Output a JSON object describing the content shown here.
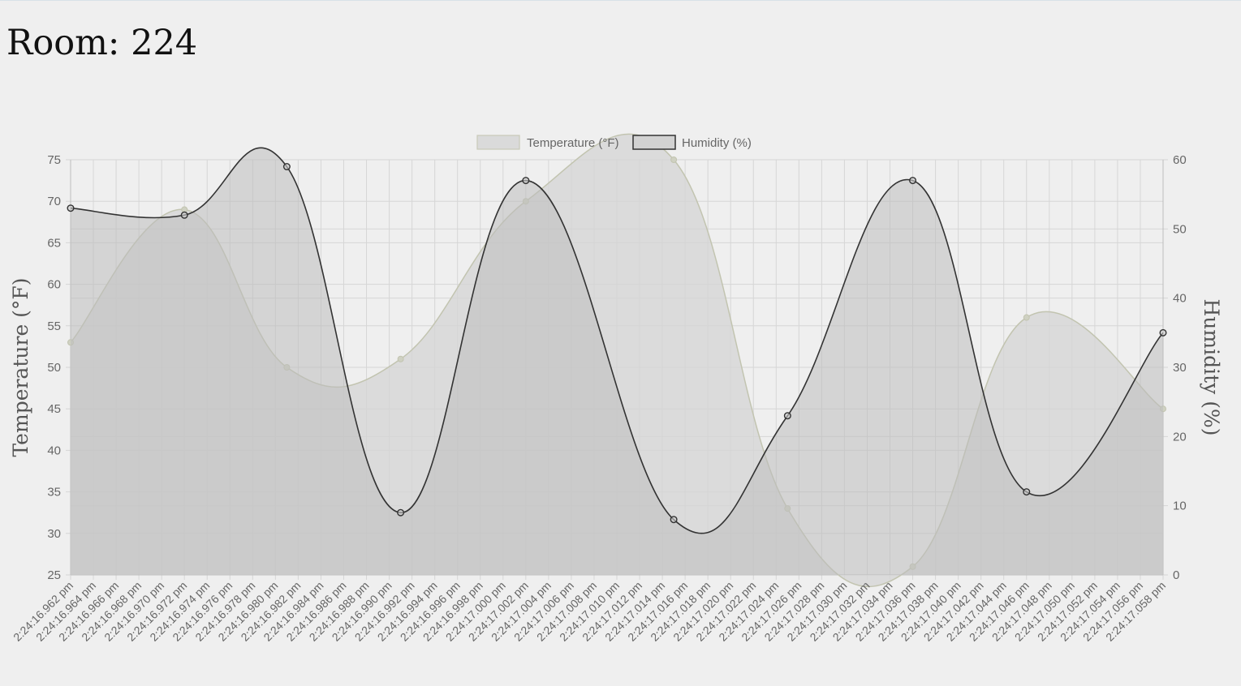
{
  "page": {
    "title": "Room: 224"
  },
  "chart_data": {
    "type": "area",
    "x": [
      "2:24:16.962 pm",
      "2:24:16.964 pm",
      "2:24:16.966 pm",
      "2:24:16.968 pm",
      "2:24:16.970 pm",
      "2:24:16.972 pm",
      "2:24:16.974 pm",
      "2:24:16.976 pm",
      "2:24:16.978 pm",
      "2:24:16.980 pm",
      "2:24:16.982 pm",
      "2:24:16.984 pm",
      "2:24:16.986 pm",
      "2:24:16.988 pm",
      "2:24:16.990 pm",
      "2:24:16.992 pm",
      "2:24:16.994 pm",
      "2:24:16.996 pm",
      "2:24:16.998 pm",
      "2:24:17.000 pm",
      "2:24:17.002 pm",
      "2:24:17.004 pm",
      "2:24:17.006 pm",
      "2:24:17.008 pm",
      "2:24:17.010 pm",
      "2:24:17.012 pm",
      "2:24:17.014 pm",
      "2:24:17.016 pm",
      "2:24:17.018 pm",
      "2:24:17.020 pm",
      "2:24:17.022 pm",
      "2:24:17.024 pm",
      "2:24:17.026 pm",
      "2:24:17.028 pm",
      "2:24:17.030 pm",
      "2:24:17.032 pm",
      "2:24:17.034 pm",
      "2:24:17.036 pm",
      "2:24:17.038 pm",
      "2:24:17.040 pm",
      "2:24:17.042 pm",
      "2:24:17.044 pm",
      "2:24:17.046 pm",
      "2:24:17.048 pm",
      "2:24:17.050 pm",
      "2:24:17.052 pm",
      "2:24:17.054 pm",
      "2:24:17.056 pm",
      "2:24:17.058 pm"
    ],
    "series": [
      {
        "name": "Temperature (°F)",
        "axis": "left",
        "points": [
          {
            "x": "2:24:16.962 pm",
            "y": 53
          },
          {
            "x": "2:24:16.972 pm",
            "y": 69
          },
          {
            "x": "2:24:16.981 pm",
            "y": 50
          },
          {
            "x": "2:24:16.991 pm",
            "y": 51
          },
          {
            "x": "2:24:17.002 pm",
            "y": 70
          },
          {
            "x": "2:24:17.015 pm",
            "y": 75
          },
          {
            "x": "2:24:17.025 pm",
            "y": 33
          },
          {
            "x": "2:24:17.036 pm",
            "y": 26
          },
          {
            "x": "2:24:17.046 pm",
            "y": 56
          },
          {
            "x": "2:24:17.058 pm",
            "y": 45
          }
        ],
        "fill_color": "#d4d4d4",
        "line_color": "#c2c4b0"
      },
      {
        "name": "Humidity (%)",
        "axis": "right",
        "points": [
          {
            "x": "2:24:16.962 pm",
            "y": 53
          },
          {
            "x": "2:24:16.972 pm",
            "y": 52
          },
          {
            "x": "2:24:16.981 pm",
            "y": 59
          },
          {
            "x": "2:24:16.991 pm",
            "y": 9
          },
          {
            "x": "2:24:17.002 pm",
            "y": 57
          },
          {
            "x": "2:24:17.015 pm",
            "y": 8
          },
          {
            "x": "2:24:17.025 pm",
            "y": 23
          },
          {
            "x": "2:24:17.036 pm",
            "y": 57
          },
          {
            "x": "2:24:17.046 pm",
            "y": 12
          },
          {
            "x": "2:24:17.058 pm",
            "y": 35
          }
        ],
        "fill_color": "#bdbdbd",
        "line_color": "#333333"
      }
    ],
    "y_left": {
      "label": "Temperature (°F)",
      "min": 25,
      "max": 75,
      "ticks": [
        25,
        30,
        35,
        40,
        45,
        50,
        55,
        60,
        65,
        70,
        75
      ]
    },
    "y_right": {
      "label": "Humidity (%)",
      "min": 0,
      "max": 60,
      "ticks": [
        0,
        10,
        20,
        30,
        40,
        50,
        60
      ]
    },
    "grid": true,
    "legend_position": "top"
  }
}
